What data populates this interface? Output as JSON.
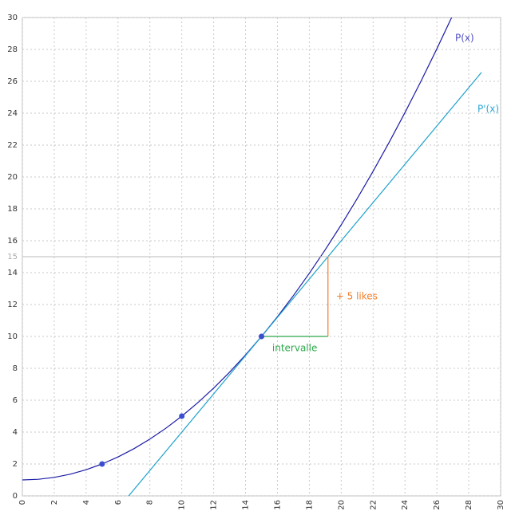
{
  "chart_data": {
    "type": "line",
    "series": [
      {
        "name": "P(x)",
        "color": "#1c1ca6",
        "x": [
          0,
          1,
          2,
          3,
          4,
          5,
          6,
          7,
          8,
          9,
          10,
          11,
          12,
          13,
          14,
          15,
          16,
          17,
          18,
          19,
          20,
          21,
          22,
          23,
          24,
          25,
          26,
          27
        ],
        "values": [
          1,
          1.04,
          1.16,
          1.36,
          1.64,
          2,
          2.44,
          2.96,
          3.56,
          4.24,
          5,
          5.84,
          6.76,
          7.76,
          8.84,
          10,
          11.24,
          12.56,
          13.96,
          15.44,
          17,
          18.64,
          20.36,
          22.16,
          24.04,
          26,
          28.04,
          30.16
        ]
      },
      {
        "name": "P'(x)",
        "color": "#1ea2cc",
        "x": [
          6.67,
          28.8
        ],
        "values": [
          0,
          26.56
        ]
      }
    ],
    "points": {
      "color": "#3a4ed2",
      "x": [
        5,
        10,
        15
      ],
      "values": [
        2,
        5,
        10
      ]
    },
    "reference_line": {
      "y": 15,
      "label": "15",
      "color": "#bbbbbb"
    },
    "annotations": [
      {
        "text": "intervalle",
        "color": "#2ca84a",
        "x": [
          15,
          19.17
        ],
        "y": [
          10,
          10
        ]
      },
      {
        "text": "+ 5 likes",
        "color": "#f07f2a",
        "x": [
          19.17,
          19.17
        ],
        "y": [
          10,
          15
        ]
      }
    ],
    "xlim": [
      0,
      30
    ],
    "ylim": [
      0,
      30
    ],
    "xticks": [
      0,
      2,
      4,
      6,
      8,
      10,
      12,
      14,
      16,
      18,
      20,
      22,
      24,
      26,
      28,
      30
    ],
    "yticks": [
      0,
      2,
      4,
      6,
      8,
      10,
      12,
      14,
      16,
      18,
      20,
      22,
      24,
      26,
      28,
      30
    ],
    "grid": true
  }
}
